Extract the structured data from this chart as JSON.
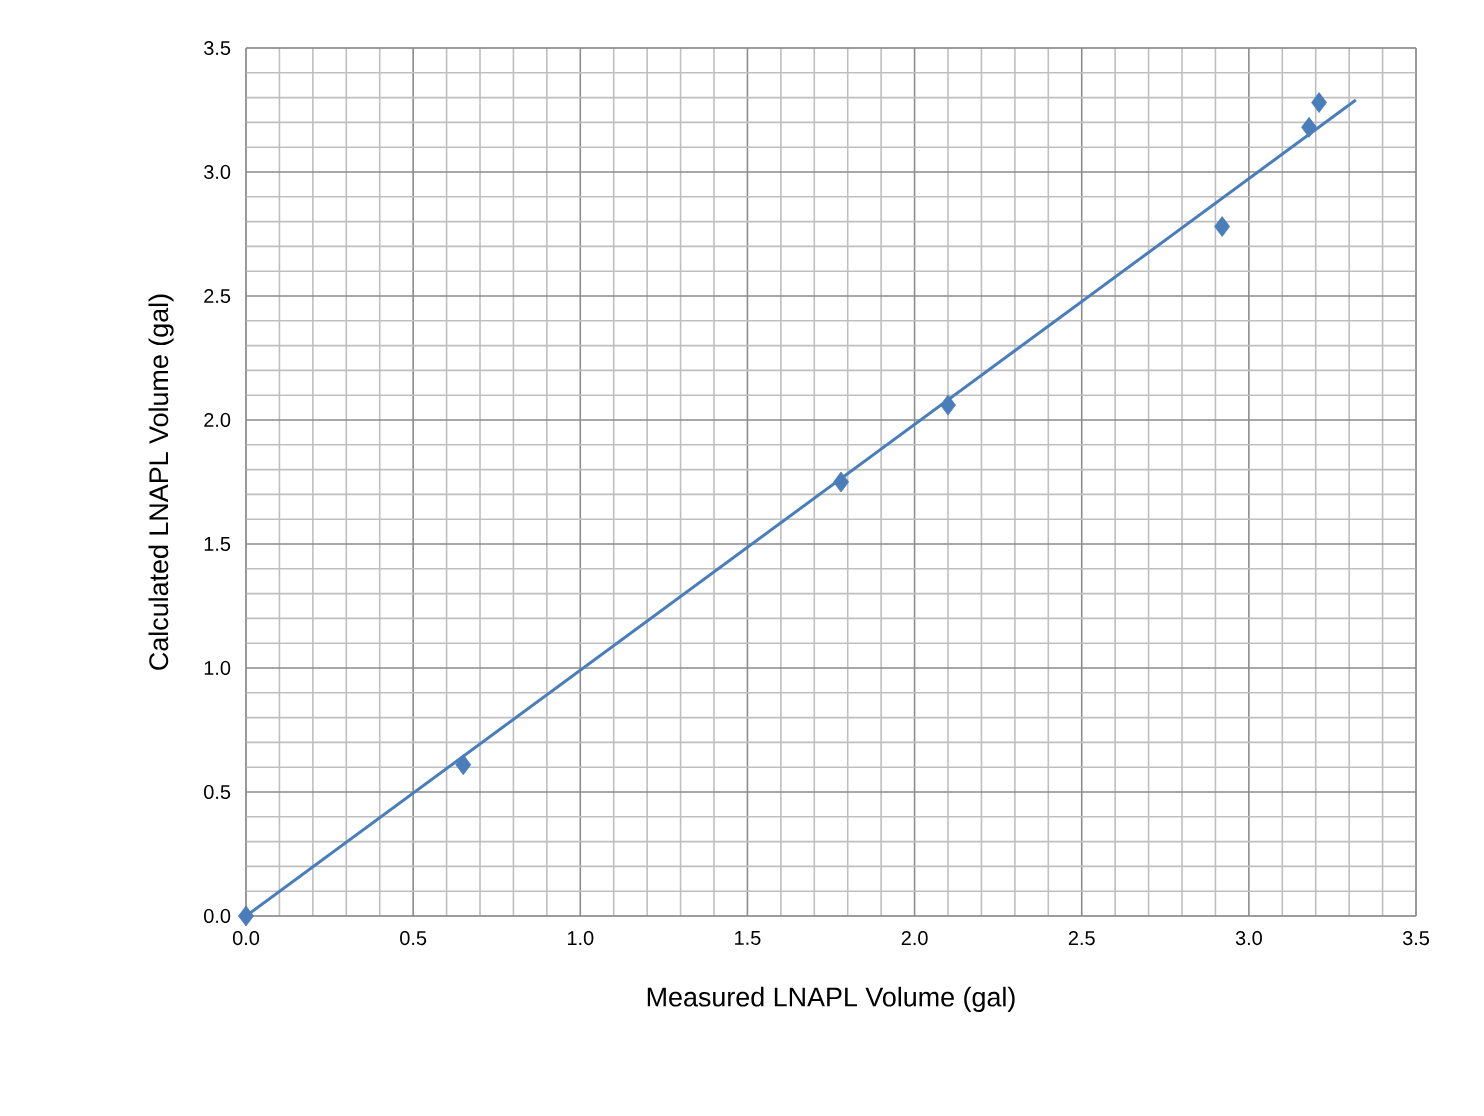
{
  "chart_data": {
    "type": "scatter",
    "xlabel": "Measured LNAPL Volume (gal)",
    "ylabel": "Calculated LNAPL Volume (gal)",
    "xlim": [
      0,
      3.5
    ],
    "ylim": [
      0,
      3.5
    ],
    "xticks": [
      {
        "value": 0,
        "label": "0.0"
      },
      {
        "value": 0.5,
        "label": "0.5"
      },
      {
        "value": 1,
        "label": "1.0"
      },
      {
        "value": 1.5,
        "label": "1.5"
      },
      {
        "value": 2,
        "label": "2.0"
      },
      {
        "value": 2.5,
        "label": "2.5"
      },
      {
        "value": 3,
        "label": "3.0"
      },
      {
        "value": 3.5,
        "label": "3.5"
      }
    ],
    "yticks": [
      {
        "value": 0,
        "label": "0.0"
      },
      {
        "value": 0.5,
        "label": "0.5"
      },
      {
        "value": 1,
        "label": "1.0"
      },
      {
        "value": 1.5,
        "label": "1.5"
      },
      {
        "value": 2,
        "label": "2.0"
      },
      {
        "value": 2.5,
        "label": "2.5"
      },
      {
        "value": 3,
        "label": "3.0"
      },
      {
        "value": 3.5,
        "label": "3.5"
      }
    ],
    "grid": true,
    "series": [
      {
        "color": "#4a7ebb",
        "marker": "diamond",
        "x": [
          0,
          0.65,
          1.78,
          2.1,
          2.92,
          3.18,
          3.21
        ],
        "values": [
          0,
          0.61,
          1.75,
          2.06,
          2.78,
          3.18,
          3.28
        ]
      },
      {
        "type": "line",
        "color": "#4a7ebb",
        "marker": "none",
        "line_style": "solid",
        "x": [
          0,
          3.32
        ],
        "values": [
          0,
          3.29
        ]
      }
    ]
  }
}
